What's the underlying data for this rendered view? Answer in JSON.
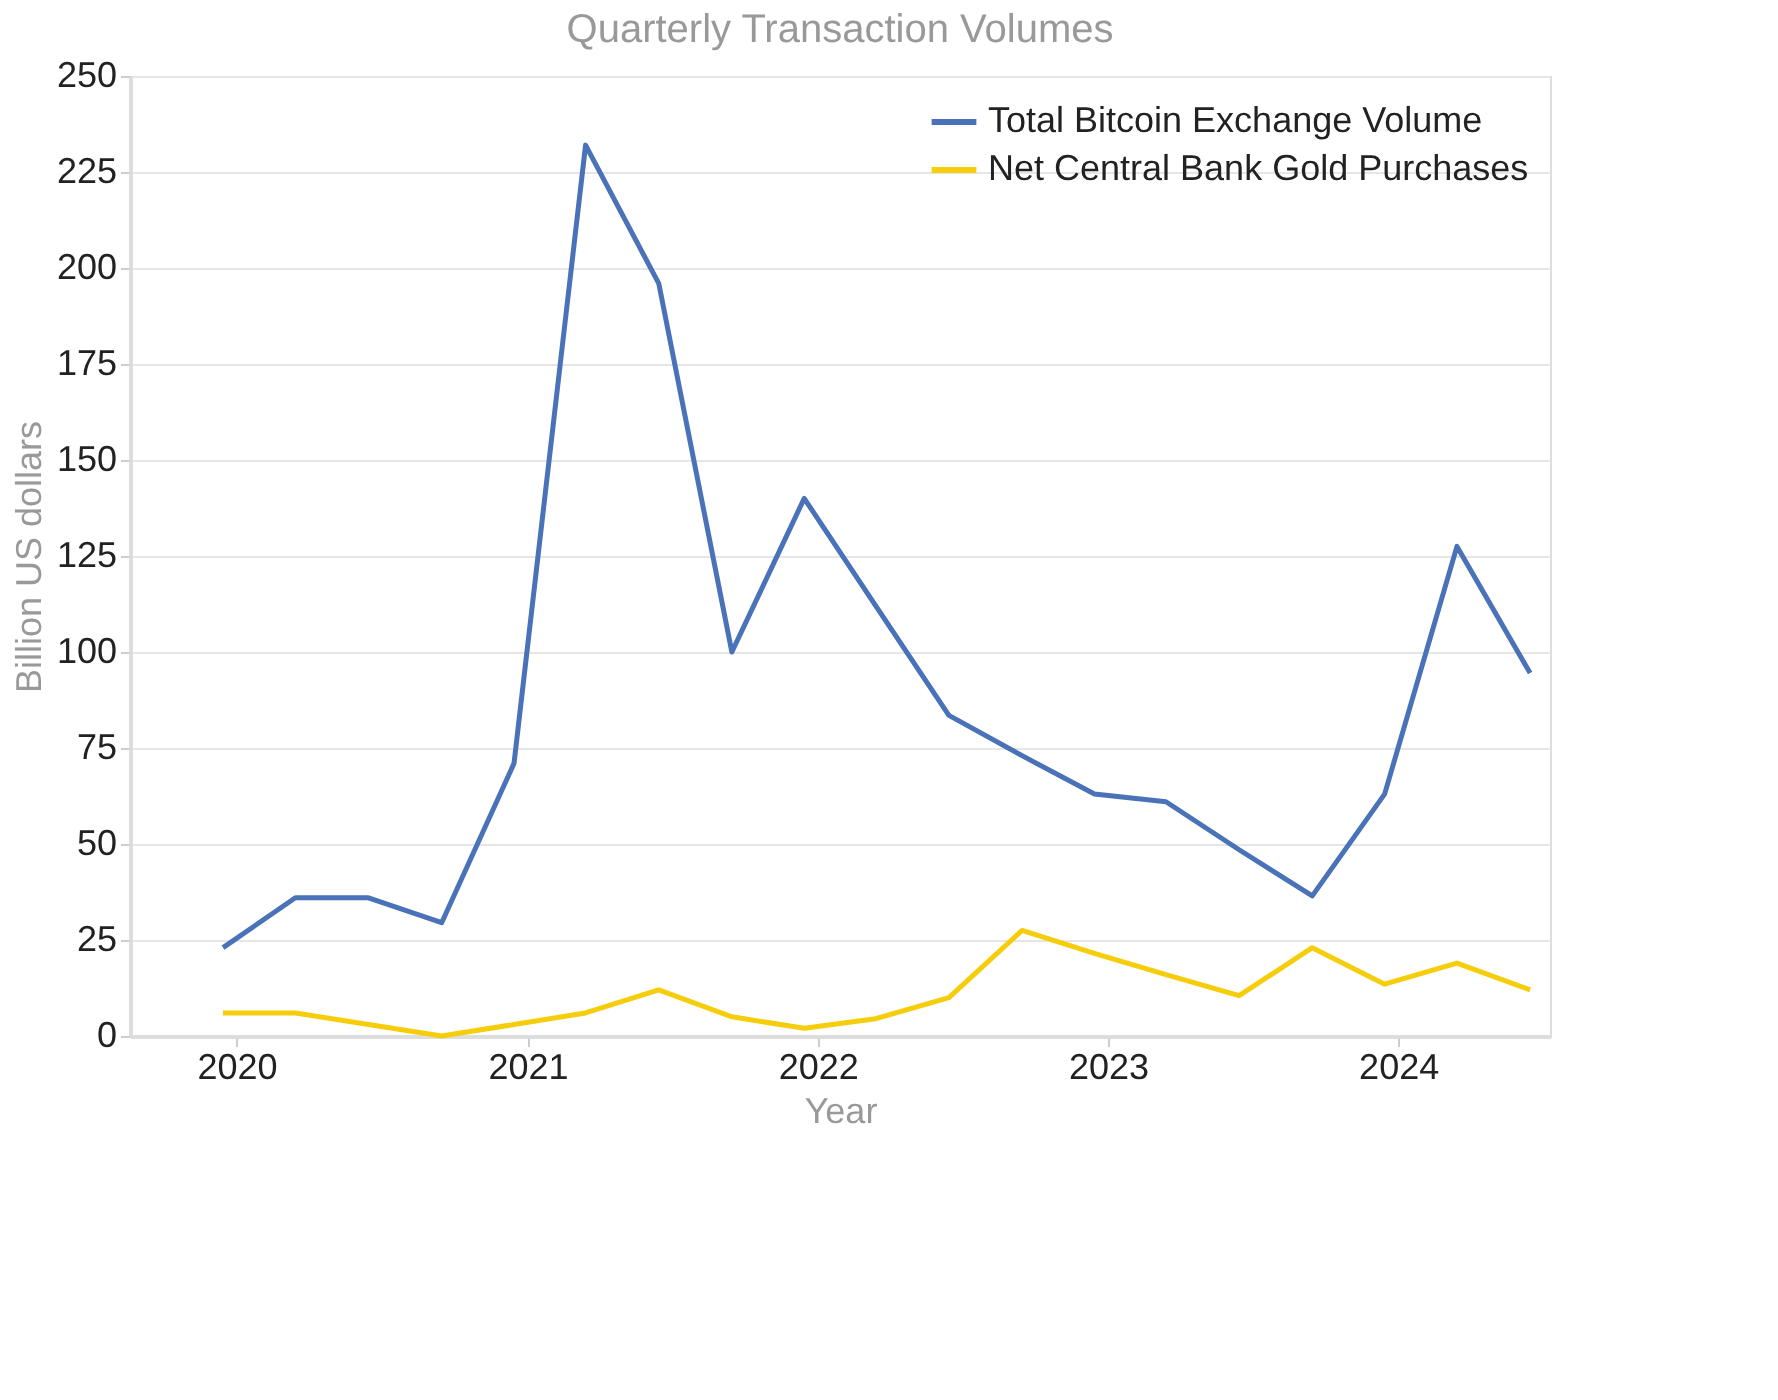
{
  "chart_data": {
    "type": "line",
    "title": "Quarterly Transaction Volumes",
    "xlabel": "Year",
    "ylabel": "Billion US dollars",
    "x": [
      "2019-12-15",
      "2020-03-15",
      "2020-06-15",
      "2020-09-15",
      "2020-12-15",
      "2021-03-15",
      "2021-06-15",
      "2021-09-15",
      "2021-12-15",
      "2022-03-15",
      "2022-06-15",
      "2022-09-15",
      "2022-12-15",
      "2023-03-15",
      "2023-06-15",
      "2023-09-15",
      "2023-12-15",
      "2024-03-15",
      "2024-06-15"
    ],
    "series": [
      {
        "name": "Total Bitcoin Exchange Volume",
        "color": "#4a72b8",
        "values": [
          23,
          36,
          36,
          29.5,
          71,
          232,
          196,
          100,
          140,
          112,
          83.5,
          73,
          63,
          61,
          48.5,
          36.5,
          63,
          127.5,
          94.5
        ]
      },
      {
        "name": "Net Central Bank Gold Purchases",
        "color": "#f5cd0a",
        "values": [
          6,
          6,
          3,
          0,
          3,
          6,
          12,
          5,
          2,
          4.5,
          10,
          27.5,
          21.5,
          16,
          10.5,
          23,
          13.5,
          19,
          12
        ]
      }
    ],
    "xlim": [
      "2019-08-20",
      "2024-07-10"
    ],
    "xticks": [
      "2020",
      "2021",
      "2022",
      "2023",
      "2024"
    ],
    "ylim": [
      0,
      250
    ],
    "yticks": [
      0,
      25,
      50,
      75,
      100,
      125,
      150,
      175,
      200,
      225,
      250
    ],
    "grid": "y",
    "legend": "top right",
    "marker": "none",
    "line_style": "solid"
  }
}
